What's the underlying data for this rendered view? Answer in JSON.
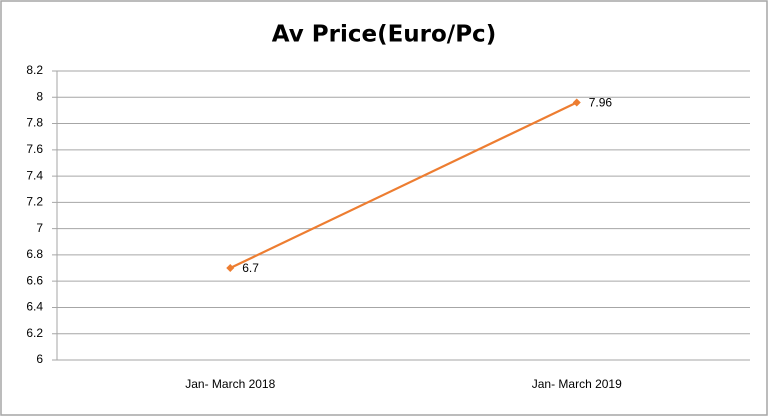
{
  "chart_data": {
    "type": "line",
    "title": "Av Price(Euro/Pc)",
    "categories": [
      "Jan- March 2018",
      "Jan- March 2019"
    ],
    "values": [
      6.7,
      7.96
    ],
    "color": "#ed7d31",
    "ylim": [
      6,
      8.2
    ],
    "yticks": [
      6,
      6.2,
      6.4,
      6.6,
      6.8,
      7,
      7.2,
      7.4,
      7.6,
      7.8,
      8,
      8.2
    ],
    "grid": true
  }
}
